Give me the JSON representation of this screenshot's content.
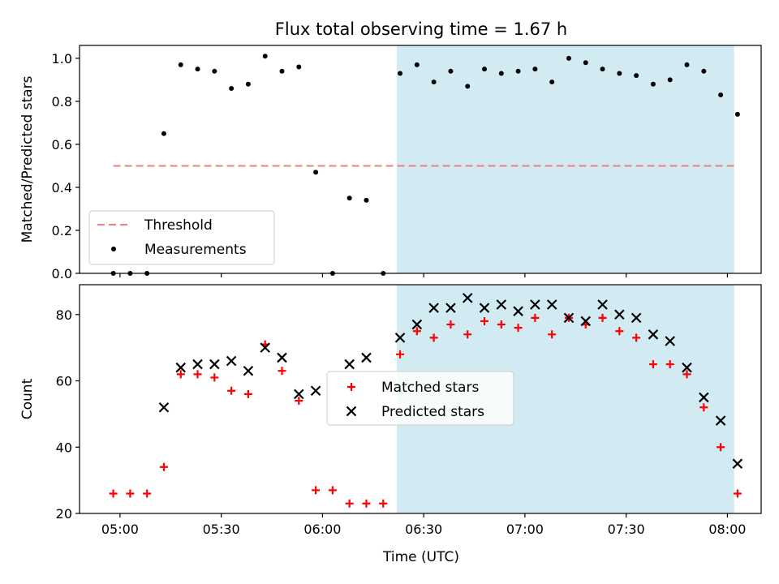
{
  "figure": {
    "title": "Flux total observing time = 1.67 h",
    "xlabel": "Time (UTC)"
  },
  "colors": {
    "shaded_region": "#add8e6",
    "threshold_line": "#f08080",
    "measurements": "#000000",
    "matched": "#ff0000",
    "predicted": "#000000"
  },
  "chart_data": [
    {
      "type": "scatter",
      "panel": "top",
      "ylabel": "Matched/Predicted stars",
      "ylim": [
        0.0,
        1.06
      ],
      "yticks": [
        "0.0",
        "0.2",
        "0.4",
        "0.6",
        "0.8",
        "1.0"
      ],
      "xlim": [
        "04:48",
        "08:10"
      ],
      "xticks": [
        "05:00",
        "05:30",
        "06:00",
        "06:30",
        "07:00",
        "07:30",
        "08:00"
      ],
      "shaded_interval": [
        "06:22",
        "08:02"
      ],
      "threshold": {
        "name": "Threshold",
        "value": 0.5,
        "x_range": [
          "04:58",
          "08:02"
        ],
        "style": "dashed"
      },
      "legend": {
        "position": "lower left",
        "entries": [
          "Threshold",
          "Measurements"
        ]
      },
      "series": [
        {
          "name": "Measurements",
          "x": [
            "04:58",
            "05:03",
            "05:08",
            "05:13",
            "05:18",
            "05:23",
            "05:28",
            "05:33",
            "05:38",
            "05:43",
            "05:48",
            "05:53",
            "05:58",
            "06:03",
            "06:08",
            "06:13",
            "06:18",
            "06:23",
            "06:28",
            "06:33",
            "06:38",
            "06:43",
            "06:48",
            "06:53",
            "06:58",
            "07:03",
            "07:08",
            "07:13",
            "07:18",
            "07:23",
            "07:28",
            "07:33",
            "07:38",
            "07:43",
            "07:48",
            "07:53",
            "07:58",
            "08:03"
          ],
          "y": [
            0.0,
            0.0,
            0.0,
            0.65,
            0.97,
            0.95,
            0.94,
            0.86,
            0.88,
            1.01,
            0.94,
            0.96,
            0.47,
            0.0,
            0.35,
            0.34,
            0.0,
            0.93,
            0.97,
            0.89,
            0.94,
            0.87,
            0.95,
            0.93,
            0.94,
            0.95,
            0.89,
            1.0,
            0.98,
            0.95,
            0.93,
            0.92,
            0.88,
            0.9,
            0.97,
            0.94,
            0.83,
            0.74
          ]
        }
      ]
    },
    {
      "type": "scatter",
      "panel": "bottom",
      "ylabel": "Count",
      "ylim": [
        20,
        89
      ],
      "yticks": [
        "20",
        "40",
        "60",
        "80"
      ],
      "xlim": [
        "04:48",
        "08:10"
      ],
      "xticks": [
        "05:00",
        "05:30",
        "06:00",
        "06:30",
        "07:00",
        "07:30",
        "08:00"
      ],
      "shaded_interval": [
        "06:22",
        "08:02"
      ],
      "legend": {
        "position": "center",
        "entries": [
          "Matched stars",
          "Predicted stars"
        ]
      },
      "series": [
        {
          "name": "Matched stars",
          "marker": "+",
          "x": [
            "04:58",
            "05:03",
            "05:08",
            "05:13",
            "05:18",
            "05:23",
            "05:28",
            "05:33",
            "05:38",
            "05:43",
            "05:48",
            "05:53",
            "05:58",
            "06:03",
            "06:08",
            "06:13",
            "06:18",
            "06:23",
            "06:28",
            "06:33",
            "06:38",
            "06:43",
            "06:48",
            "06:53",
            "06:58",
            "07:03",
            "07:08",
            "07:13",
            "07:18",
            "07:23",
            "07:28",
            "07:33",
            "07:38",
            "07:43",
            "07:48",
            "07:53",
            "07:58",
            "08:03"
          ],
          "y": [
            26,
            26,
            26,
            34,
            62,
            62,
            61,
            57,
            56,
            71,
            63,
            54,
            27,
            27,
            23,
            23,
            23,
            68,
            75,
            73,
            77,
            74,
            78,
            77,
            76,
            79,
            74,
            79,
            77,
            79,
            75,
            73,
            65,
            65,
            62,
            52,
            40,
            26
          ]
        },
        {
          "name": "Predicted stars",
          "marker": "x",
          "x": [
            "05:13",
            "05:18",
            "05:23",
            "05:28",
            "05:33",
            "05:38",
            "05:43",
            "05:48",
            "05:53",
            "05:58",
            "06:08",
            "06:13",
            "06:23",
            "06:28",
            "06:33",
            "06:38",
            "06:43",
            "06:48",
            "06:53",
            "06:58",
            "07:03",
            "07:08",
            "07:13",
            "07:18",
            "07:23",
            "07:28",
            "07:33",
            "07:38",
            "07:43",
            "07:48",
            "07:53",
            "07:58",
            "08:03"
          ],
          "y": [
            52,
            64,
            65,
            65,
            66,
            63,
            70,
            67,
            56,
            57,
            65,
            67,
            73,
            77,
            82,
            82,
            85,
            82,
            83,
            81,
            83,
            83,
            79,
            78,
            83,
            80,
            79,
            74,
            72,
            64,
            55,
            48,
            35
          ]
        }
      ]
    }
  ]
}
